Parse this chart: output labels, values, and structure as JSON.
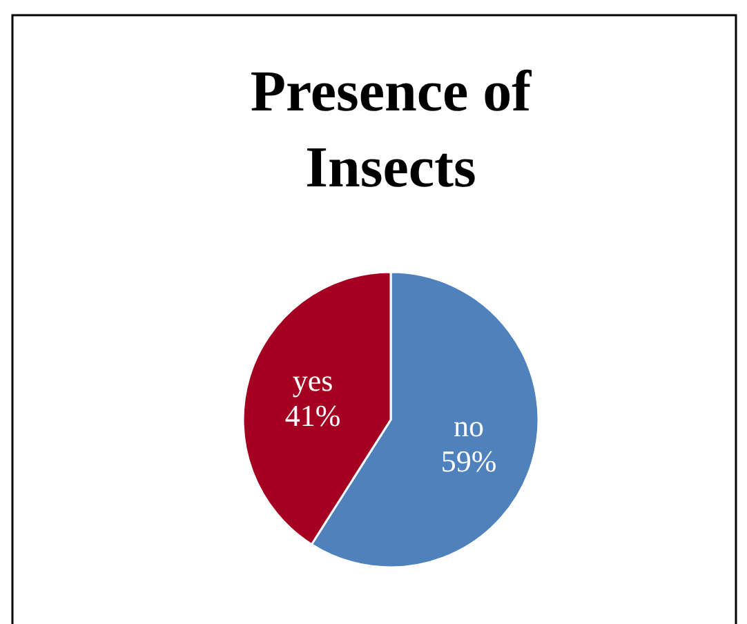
{
  "chart_data": {
    "type": "pie",
    "title": "Presence of Insects",
    "categories": [
      "no",
      "yes"
    ],
    "values": [
      59,
      41
    ],
    "colors": [
      "#4f81bd",
      "#a50021"
    ],
    "value_labels": [
      "59%",
      "41%"
    ]
  }
}
